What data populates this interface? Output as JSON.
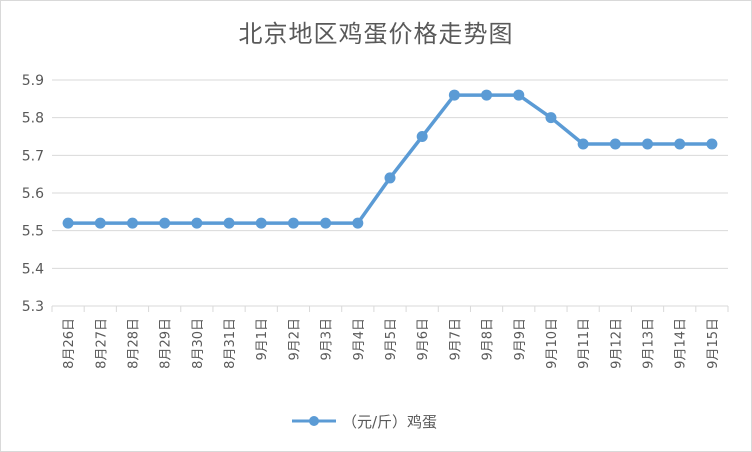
{
  "chart_data": {
    "type": "line",
    "title": "北京地区鸡蛋价格走势图",
    "categories": [
      "8月26日",
      "8月27日",
      "8月28日",
      "8月29日",
      "8月30日",
      "8月31日",
      "9月1日",
      "9月2日",
      "9月3日",
      "9月4日",
      "9月5日",
      "9月6日",
      "9月7日",
      "9月8日",
      "9月9日",
      "9月10日",
      "9月11日",
      "9月12日",
      "9月13日",
      "9月14日",
      "9月15日"
    ],
    "series": [
      {
        "name": "（元/斤）鸡蛋",
        "values": [
          5.52,
          5.52,
          5.52,
          5.52,
          5.52,
          5.52,
          5.52,
          5.52,
          5.52,
          5.52,
          5.64,
          5.75,
          5.86,
          5.86,
          5.86,
          5.8,
          5.73,
          5.73,
          5.73,
          5.73,
          5.73
        ],
        "color": "#5b9bd5"
      }
    ],
    "yticks": [
      "5.3",
      "5.4",
      "5.5",
      "5.6",
      "5.7",
      "5.8",
      "5.9"
    ],
    "ylim": [
      5.3,
      5.9
    ],
    "grid": true,
    "legend": "bottom"
  }
}
